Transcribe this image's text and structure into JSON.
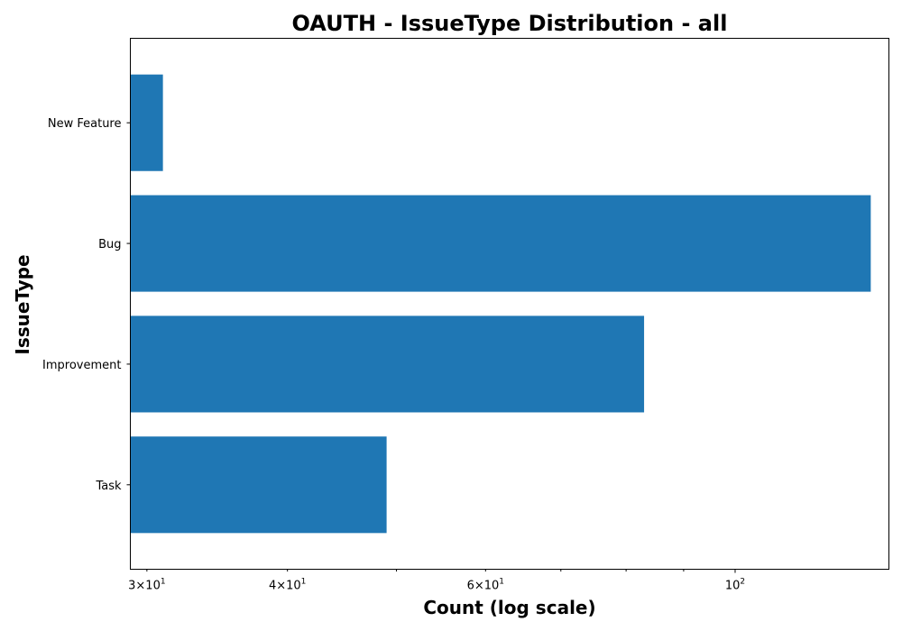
{
  "chart_data": {
    "type": "bar",
    "orientation": "horizontal",
    "title": "OAUTH - IssueType Distribution - all",
    "xlabel": "Count (log scale)",
    "ylabel": "IssueType",
    "xscale": "log",
    "xlim": [
      29,
      137
    ],
    "categories": [
      "Task",
      "Improvement",
      "Bug",
      "New Feature"
    ],
    "values": [
      49,
      83,
      132,
      31
    ],
    "bar_color": "#1f77b4",
    "grid": false,
    "legend": "none",
    "major_ticks": [
      {
        "value": 100,
        "base": "10",
        "exp": "2"
      }
    ],
    "minor_tick_values": [
      30,
      40,
      50,
      60,
      70,
      80,
      90
    ],
    "labeled_minor_ticks": [
      {
        "value": 30,
        "mantissa": "3",
        "base": "10",
        "exp": "1"
      },
      {
        "value": 40,
        "mantissa": "4",
        "base": "10",
        "exp": "1"
      },
      {
        "value": 60,
        "mantissa": "6",
        "base": "10",
        "exp": "1"
      }
    ]
  }
}
